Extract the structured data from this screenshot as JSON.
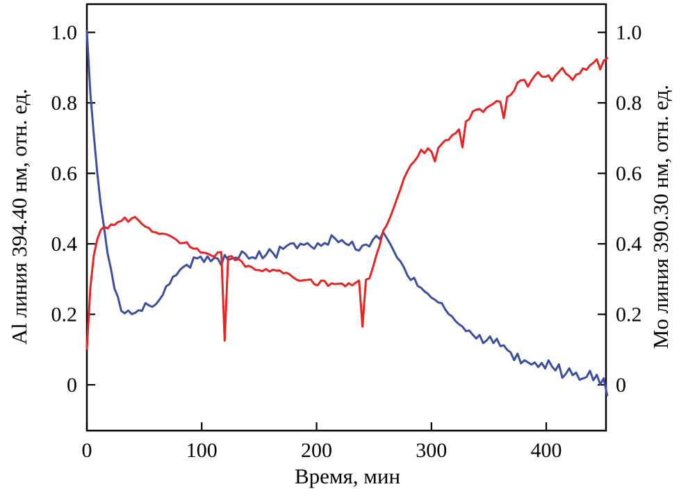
{
  "chart_data": {
    "type": "line",
    "title": "",
    "xlabel": "Время, мин",
    "ylabel_left": "Al линия 394.40 нм, отн. ед.",
    "ylabel_right": "Mo линия 390.30 нм, отн. ед.",
    "xlim": [
      0,
      452
    ],
    "ylim": [
      -0.13,
      1.08
    ],
    "x_ticks": [
      0,
      100,
      200,
      300,
      400
    ],
    "y_ticks": [
      0,
      0.2,
      0.4,
      0.6,
      0.8,
      1.0
    ],
    "y_tick_labels": [
      "0",
      "0.2",
      "0.4",
      "0.6",
      "0.8",
      "1.0"
    ],
    "grid": false,
    "legend": "none",
    "frame_color": "#000000",
    "series": [
      {
        "name": "Al линия 394.40 нм",
        "axis": "left",
        "color": "#3b4ea0",
        "line_width": 3,
        "jitter": 0.012,
        "x_start": 0,
        "x_step": 3,
        "values": [
          1.0,
          0.82,
          0.7,
          0.6,
          0.52,
          0.45,
          0.38,
          0.33,
          0.28,
          0.25,
          0.22,
          0.21,
          0.2,
          0.19,
          0.2,
          0.21,
          0.2,
          0.22,
          0.22,
          0.23,
          0.24,
          0.25,
          0.26,
          0.28,
          0.29,
          0.31,
          0.32,
          0.32,
          0.33,
          0.34,
          0.33,
          0.35,
          0.35,
          0.36,
          0.35,
          0.37,
          0.36,
          0.37,
          0.36,
          0.35,
          0.37,
          0.36,
          0.35,
          0.36,
          0.35,
          0.37,
          0.36,
          0.35,
          0.36,
          0.37,
          0.38,
          0.37,
          0.38,
          0.39,
          0.38,
          0.37,
          0.39,
          0.38,
          0.39,
          0.4,
          0.39,
          0.38,
          0.4,
          0.39,
          0.41,
          0.4,
          0.39,
          0.41,
          0.4,
          0.41,
          0.4,
          0.42,
          0.41,
          0.4,
          0.41,
          0.4,
          0.39,
          0.4,
          0.38,
          0.39,
          0.4,
          0.41,
          0.4,
          0.42,
          0.43,
          0.42,
          0.43,
          0.41,
          0.4,
          0.38,
          0.36,
          0.35,
          0.33,
          0.32,
          0.3,
          0.31,
          0.29,
          0.28,
          0.27,
          0.26,
          0.25,
          0.24,
          0.23,
          0.22,
          0.21,
          0.2,
          0.19,
          0.18,
          0.18,
          0.17,
          0.16,
          0.16,
          0.15,
          0.14,
          0.15,
          0.13,
          0.12,
          0.13,
          0.11,
          0.12,
          0.1,
          0.11,
          0.09,
          0.1,
          0.08,
          0.09,
          0.07,
          0.08,
          0.07,
          0.06,
          0.07,
          0.05,
          0.06,
          0.04,
          0.06,
          0.05,
          0.04,
          0.05,
          0.03,
          0.04,
          0.05,
          0.03,
          0.04,
          0.02,
          0.03,
          0.02,
          0.03,
          0.01,
          0.02,
          0.0,
          0.01,
          -0.03
        ]
      },
      {
        "name": "Mo линия 390.30 нм",
        "axis": "right",
        "color": "#e62422",
        "line_width": 3,
        "jitter": 0.008,
        "x_start": 0,
        "x_step": 3,
        "values": [
          0.1,
          0.28,
          0.37,
          0.42,
          0.44,
          0.45,
          0.45,
          0.46,
          0.45,
          0.46,
          0.46,
          0.47,
          0.46,
          0.47,
          0.47,
          0.46,
          0.46,
          0.45,
          0.45,
          0.44,
          0.44,
          0.43,
          0.43,
          0.42,
          0.42,
          0.41,
          0.41,
          0.4,
          0.4,
          0.4,
          0.39,
          0.39,
          0.39,
          0.38,
          0.38,
          0.38,
          0.37,
          0.37,
          0.37,
          0.37,
          0.12,
          0.36,
          0.36,
          0.35,
          0.35,
          0.35,
          0.34,
          0.34,
          0.34,
          0.33,
          0.33,
          0.33,
          0.33,
          0.32,
          0.32,
          0.32,
          0.32,
          0.31,
          0.31,
          0.31,
          0.31,
          0.3,
          0.3,
          0.3,
          0.3,
          0.3,
          0.29,
          0.29,
          0.29,
          0.29,
          0.28,
          0.28,
          0.28,
          0.28,
          0.28,
          0.28,
          0.29,
          0.29,
          0.29,
          0.3,
          0.17,
          0.3,
          0.31,
          0.33,
          0.36,
          0.39,
          0.43,
          0.45,
          0.47,
          0.5,
          0.53,
          0.56,
          0.59,
          0.61,
          0.63,
          0.64,
          0.65,
          0.66,
          0.65,
          0.67,
          0.66,
          0.63,
          0.67,
          0.68,
          0.69,
          0.7,
          0.71,
          0.72,
          0.73,
          0.68,
          0.75,
          0.76,
          0.77,
          0.78,
          0.78,
          0.77,
          0.78,
          0.79,
          0.79,
          0.8,
          0.81,
          0.76,
          0.82,
          0.83,
          0.84,
          0.86,
          0.87,
          0.86,
          0.84,
          0.86,
          0.87,
          0.88,
          0.87,
          0.87,
          0.88,
          0.87,
          0.88,
          0.89,
          0.9,
          0.89,
          0.88,
          0.87,
          0.88,
          0.88,
          0.89,
          0.89,
          0.9,
          0.91,
          0.92,
          0.9,
          0.92,
          0.93
        ]
      }
    ]
  }
}
